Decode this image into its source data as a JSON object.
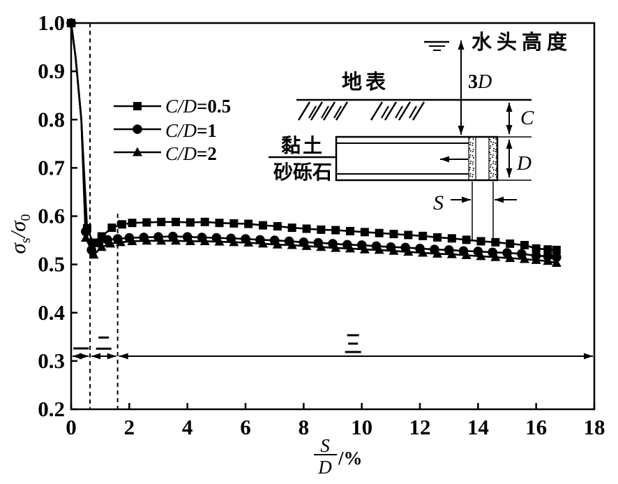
{
  "page": {
    "background": "#ffffff",
    "ink": "#000000"
  },
  "legend": {
    "items": [
      {
        "marker": "square",
        "var_label": "C/D",
        "value_label": "=0.5"
      },
      {
        "marker": "circle",
        "var_label": "C/D",
        "value_label": "=1"
      },
      {
        "marker": "triangle",
        "var_label": "C/D",
        "value_label": "=2"
      }
    ]
  },
  "inset": {
    "water_head_label": "水头高度",
    "surface_label": "地表",
    "clay_label": "黏土",
    "gravel_label": "砂砾石",
    "head_height_coef": "3",
    "head_height_var": "D",
    "cover_label": "C",
    "diameter_label": "D",
    "spacing_label": "S"
  },
  "chart_data": {
    "type": "line",
    "title": "",
    "xlabel": {
      "numerator": "S",
      "denominator": "D",
      "suffix": "/%"
    },
    "ylabel": {
      "sigma1": "σ",
      "sub1": "s",
      "sigma2": "/σ",
      "sub2": "0"
    },
    "xlim": [
      0,
      18
    ],
    "ylim": [
      0.2,
      1.0
    ],
    "x_ticks": [
      0,
      2,
      4,
      6,
      8,
      10,
      12,
      14,
      16,
      18
    ],
    "y_ticks": [
      0.2,
      0.3,
      0.4,
      0.5,
      0.6,
      0.7,
      0.8,
      0.9,
      1.0
    ],
    "grid": false,
    "legend_position": "upper-left-inside",
    "dashed_lines": [
      {
        "x": 0.65,
        "y_top": 1.0,
        "y_bottom": 0.2
      },
      {
        "x": 1.6,
        "y_top": 0.605,
        "y_bottom": 0.2
      }
    ],
    "region_arrows": {
      "y": 0.31,
      "segments": [
        {
          "from": 0,
          "to": 0.65,
          "label": "一",
          "label_x": 0.34,
          "label_y": 0.326
        },
        {
          "from": 0.65,
          "to": 1.6,
          "label": "二",
          "label_x": 1.12,
          "label_y": 0.337
        },
        {
          "from": 1.6,
          "to": 18,
          "label": "三",
          "label_x": 9.7,
          "label_y": 0.336
        }
      ]
    },
    "series": [
      {
        "name": "C/D=0.5",
        "marker": "square",
        "points": [
          [
            0,
            1.0
          ],
          [
            0.15,
            0.93
          ],
          [
            0.35,
            0.8
          ],
          [
            0.55,
            0.575
          ],
          [
            0.75,
            0.545
          ],
          [
            1.05,
            0.558
          ],
          [
            1.4,
            0.576
          ],
          [
            1.75,
            0.583
          ],
          [
            2.1,
            0.586
          ],
          [
            2.6,
            0.587
          ],
          [
            3.1,
            0.588
          ],
          [
            3.6,
            0.588
          ],
          [
            4.1,
            0.587
          ],
          [
            4.6,
            0.588
          ],
          [
            5.1,
            0.586
          ],
          [
            5.6,
            0.585
          ],
          [
            6.1,
            0.584
          ],
          [
            6.6,
            0.581
          ],
          [
            7.1,
            0.579
          ],
          [
            7.6,
            0.576
          ],
          [
            8.1,
            0.574
          ],
          [
            8.6,
            0.572
          ],
          [
            9.1,
            0.571
          ],
          [
            9.6,
            0.569
          ],
          [
            10.1,
            0.567
          ],
          [
            10.6,
            0.565
          ],
          [
            11.1,
            0.563
          ],
          [
            11.6,
            0.561
          ],
          [
            12.1,
            0.559
          ],
          [
            12.6,
            0.556
          ],
          [
            13.1,
            0.554
          ],
          [
            13.6,
            0.551
          ],
          [
            14.1,
            0.548
          ],
          [
            14.6,
            0.546
          ],
          [
            15.1,
            0.543
          ],
          [
            15.6,
            0.54
          ],
          [
            16.0,
            0.533
          ],
          [
            16.4,
            0.531
          ],
          [
            16.7,
            0.53
          ]
        ]
      },
      {
        "name": "C/D=1",
        "marker": "circle",
        "points": [
          [
            0,
            1.0
          ],
          [
            0.15,
            0.93
          ],
          [
            0.35,
            0.8
          ],
          [
            0.5,
            0.568
          ],
          [
            0.7,
            0.53
          ],
          [
            0.95,
            0.545
          ],
          [
            1.25,
            0.551
          ],
          [
            1.6,
            0.553
          ],
          [
            2.0,
            0.555
          ],
          [
            2.5,
            0.556
          ],
          [
            3.0,
            0.557
          ],
          [
            3.5,
            0.558
          ],
          [
            4.0,
            0.557
          ],
          [
            4.5,
            0.556
          ],
          [
            5.0,
            0.555
          ],
          [
            5.5,
            0.554
          ],
          [
            6.0,
            0.553
          ],
          [
            6.5,
            0.551
          ],
          [
            7.0,
            0.55
          ],
          [
            7.5,
            0.548
          ],
          [
            8.0,
            0.546
          ],
          [
            8.5,
            0.545
          ],
          [
            9.0,
            0.543
          ],
          [
            9.5,
            0.541
          ],
          [
            10.0,
            0.54
          ],
          [
            10.5,
            0.538
          ],
          [
            11.0,
            0.536
          ],
          [
            11.5,
            0.535
          ],
          [
            12.0,
            0.533
          ],
          [
            12.5,
            0.531
          ],
          [
            13.0,
            0.53
          ],
          [
            13.5,
            0.528
          ],
          [
            14.0,
            0.527
          ],
          [
            14.5,
            0.525
          ],
          [
            15.0,
            0.524
          ],
          [
            15.5,
            0.522
          ],
          [
            16.0,
            0.518
          ],
          [
            16.4,
            0.517
          ],
          [
            16.7,
            0.515
          ]
        ]
      },
      {
        "name": "C/D=2",
        "marker": "triangle",
        "points": [
          [
            0,
            1.0
          ],
          [
            0.15,
            0.93
          ],
          [
            0.35,
            0.8
          ],
          [
            0.5,
            0.555
          ],
          [
            0.78,
            0.52
          ],
          [
            1.05,
            0.536
          ],
          [
            1.35,
            0.543
          ],
          [
            1.7,
            0.546
          ],
          [
            2.1,
            0.548
          ],
          [
            2.6,
            0.549
          ],
          [
            3.1,
            0.549
          ],
          [
            3.6,
            0.549
          ],
          [
            4.1,
            0.548
          ],
          [
            4.6,
            0.548
          ],
          [
            5.1,
            0.547
          ],
          [
            5.6,
            0.546
          ],
          [
            6.1,
            0.545
          ],
          [
            6.6,
            0.543
          ],
          [
            7.1,
            0.541
          ],
          [
            7.6,
            0.54
          ],
          [
            8.1,
            0.538
          ],
          [
            8.6,
            0.536
          ],
          [
            9.1,
            0.534
          ],
          [
            9.6,
            0.533
          ],
          [
            10.1,
            0.531
          ],
          [
            10.6,
            0.53
          ],
          [
            11.1,
            0.528
          ],
          [
            11.6,
            0.526
          ],
          [
            12.1,
            0.524
          ],
          [
            12.6,
            0.522
          ],
          [
            13.1,
            0.521
          ],
          [
            13.6,
            0.519
          ],
          [
            14.1,
            0.517
          ],
          [
            14.6,
            0.515
          ],
          [
            15.1,
            0.513
          ],
          [
            15.6,
            0.511
          ],
          [
            16.0,
            0.509
          ],
          [
            16.4,
            0.507
          ],
          [
            16.7,
            0.503
          ]
        ]
      }
    ]
  }
}
